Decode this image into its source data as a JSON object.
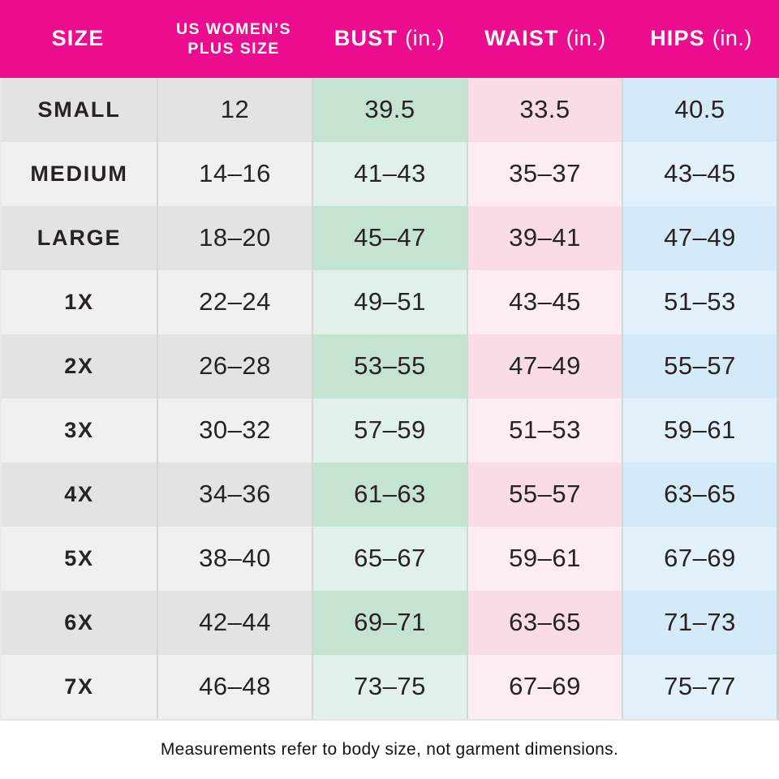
{
  "chart_data": {
    "type": "table",
    "columns": [
      "SIZE",
      "US WOMEN’S PLUS SIZE",
      "BUST (in.)",
      "WAIST (in.)",
      "HIPS (in.)"
    ],
    "rows": [
      {
        "size": "SMALL",
        "plus": "12",
        "bust": "39.5",
        "waist": "33.5",
        "hips": "40.5"
      },
      {
        "size": "MEDIUM",
        "plus": "14–16",
        "bust": "41–43",
        "waist": "35–37",
        "hips": "43–45"
      },
      {
        "size": "LARGE",
        "plus": "18–20",
        "bust": "45–47",
        "waist": "39–41",
        "hips": "47–49"
      },
      {
        "size": "1X",
        "plus": "22–24",
        "bust": "49–51",
        "waist": "43–45",
        "hips": "51–53"
      },
      {
        "size": "2X",
        "plus": "26–28",
        "bust": "53–55",
        "waist": "47–49",
        "hips": "55–57"
      },
      {
        "size": "3X",
        "plus": "30–32",
        "bust": "57–59",
        "waist": "51–53",
        "hips": "59–61"
      },
      {
        "size": "4X",
        "plus": "34–36",
        "bust": "61–63",
        "waist": "55–57",
        "hips": "63–65"
      },
      {
        "size": "5X",
        "plus": "38–40",
        "bust": "65–67",
        "waist": "59–61",
        "hips": "67–69"
      },
      {
        "size": "6X",
        "plus": "42–44",
        "bust": "69–71",
        "waist": "63–65",
        "hips": "71–73"
      },
      {
        "size": "7X",
        "plus": "46–48",
        "bust": "73–75",
        "waist": "67–69",
        "hips": "75–77"
      }
    ]
  },
  "header": {
    "size": {
      "label": "SIZE"
    },
    "plus": {
      "line1": "US WOMEN’S",
      "line2": "PLUS SIZE"
    },
    "bust": {
      "name": "BUST",
      "unit": "(in.)"
    },
    "waist": {
      "name": "WAIST",
      "unit": "(in.)"
    },
    "hips": {
      "name": "HIPS",
      "unit": "(in.)"
    }
  },
  "footer": {
    "note": "Measurements refer to body size, not garment dimensions."
  },
  "colors": {
    "header_bg": "#ec0d8e",
    "header_text": "#ffffff",
    "text": "#272325",
    "gray_dark": "#e4e3e4",
    "gray_light": "#f1f0f1",
    "green_dark": "#c4e3d1",
    "green_light": "#e1f1e9",
    "pink_dark": "#fadce7",
    "pink_light": "#fdedf3",
    "blue_dark": "#d5eaf7",
    "blue_light": "#e1f0fa",
    "border": "#d6d6d6"
  }
}
